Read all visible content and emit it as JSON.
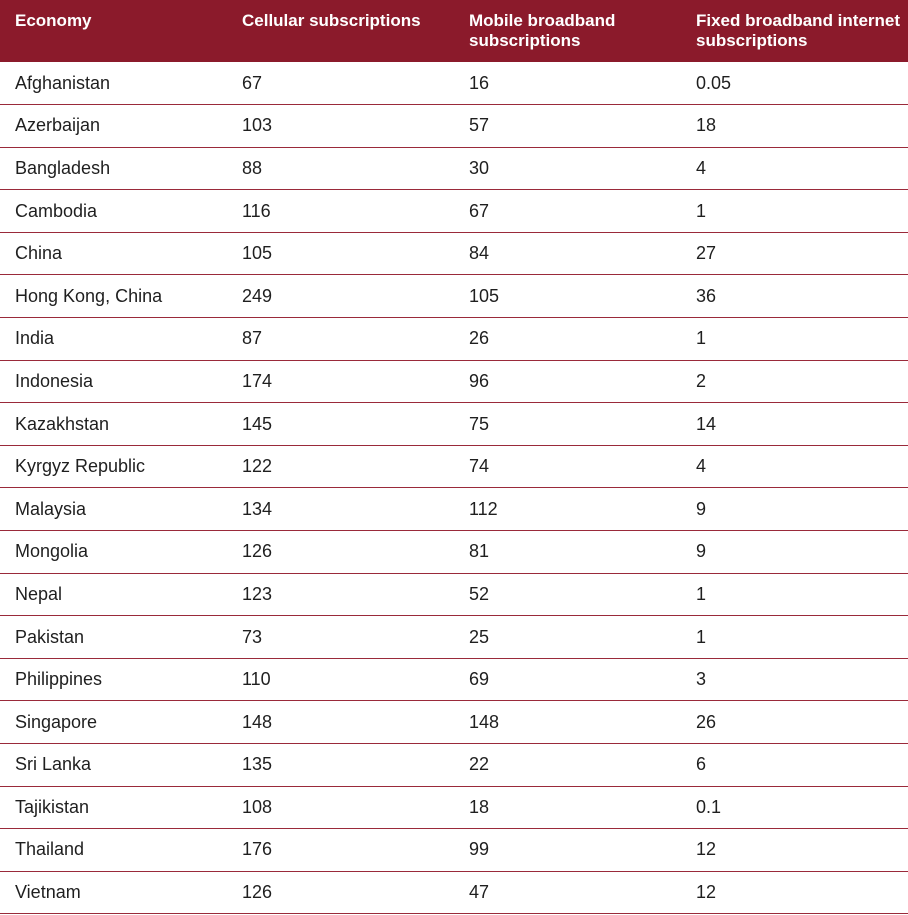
{
  "table": {
    "headers": [
      "Economy",
      "Cellular subscriptions",
      "Mobile broadband subscriptions",
      "Fixed broadband internet subscriptions"
    ],
    "rows": [
      [
        "Afghanistan",
        "67",
        "16",
        "0.05"
      ],
      [
        "Azerbaijan",
        "103",
        "57",
        "18"
      ],
      [
        "Bangladesh",
        "88",
        "30",
        "4"
      ],
      [
        "Cambodia",
        "116",
        "67",
        "1"
      ],
      [
        "China",
        "105",
        "84",
        "27"
      ],
      [
        "Hong Kong, China",
        "249",
        "105",
        "36"
      ],
      [
        "India",
        "87",
        "26",
        "1"
      ],
      [
        "Indonesia",
        "174",
        "96",
        "2"
      ],
      [
        "Kazakhstan",
        "145",
        "75",
        "14"
      ],
      [
        "Kyrgyz Republic",
        "122",
        "74",
        "4"
      ],
      [
        "Malaysia",
        "134",
        "112",
        "9"
      ],
      [
        "Mongolia",
        "126",
        "81",
        "9"
      ],
      [
        "Nepal",
        "123",
        "52",
        "1"
      ],
      [
        "Pakistan",
        "73",
        "25",
        "1"
      ],
      [
        "Philippines",
        "110",
        "69",
        "3"
      ],
      [
        "Singapore",
        "148",
        "148",
        "26"
      ],
      [
        "Sri Lanka",
        "135",
        "22",
        "6"
      ],
      [
        "Tajikistan",
        "108",
        "18",
        "0.1"
      ],
      [
        "Thailand",
        "176",
        "99",
        "12"
      ],
      [
        "Vietnam",
        "126",
        "47",
        "12"
      ]
    ]
  },
  "colors": {
    "header_background": "#8b1a2b",
    "header_text": "#ffffff",
    "row_divider": "#9a2a3a",
    "body_text": "#1f1f1f"
  }
}
